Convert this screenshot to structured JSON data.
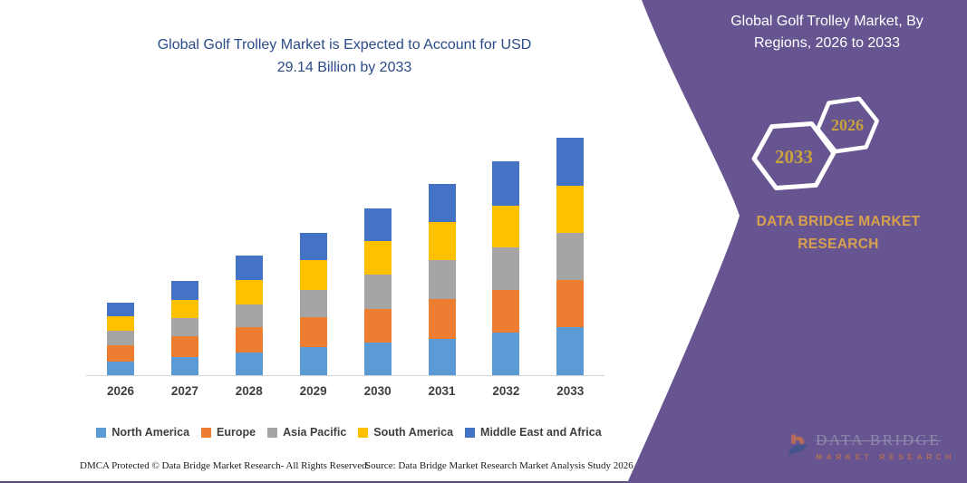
{
  "chart_data": {
    "type": "bar",
    "stacked": true,
    "title": "Global Golf Trolley Market is Expected to Account for USD 29.14 Billion by 2033",
    "title_lines": [
      "Global Golf Trolley Market is Expected to Account for USD",
      "29.14 Billion by 2033"
    ],
    "units": "USD Billion",
    "categories": [
      "2026",
      "2027",
      "2028",
      "2029",
      "2030",
      "2031",
      "2032",
      "2033"
    ],
    "series": [
      {
        "name": "North America",
        "color": "#5B9BD5",
        "values": [
          1.7,
          2.2,
          2.8,
          3.4,
          4.0,
          4.5,
          5.2,
          5.9
        ]
      },
      {
        "name": "Europe",
        "color": "#ED7D31",
        "values": [
          2.0,
          2.6,
          3.1,
          3.7,
          4.1,
          4.8,
          5.2,
          5.8
        ]
      },
      {
        "name": "Asia Pacific",
        "color": "#A5A5A5",
        "values": [
          1.8,
          2.2,
          2.8,
          3.4,
          4.2,
          4.8,
          5.3,
          5.8
        ]
      },
      {
        "name": "South America",
        "color": "#FFC000",
        "values": [
          1.7,
          2.2,
          3.0,
          3.6,
          4.1,
          4.7,
          5.1,
          5.7
        ]
      },
      {
        "name": "Middle East and Africa",
        "color": "#4472C4",
        "values": [
          1.7,
          2.4,
          3.0,
          3.3,
          4.1,
          4.7,
          5.4,
          5.94
        ]
      }
    ],
    "totals": [
      8.9,
      11.6,
      14.7,
      17.4,
      20.5,
      23.5,
      26.2,
      29.14
    ],
    "legend_position": "bottom",
    "gridlines": false,
    "y_axis_visible": false,
    "ylim": [
      0,
      30.5
    ]
  },
  "side_panel": {
    "title": "Global Golf Trolley Market, By Regions, 2026 to 2033",
    "title_lines": [
      "Global Golf Trolley Market, By",
      "Regions, 2026 to 2033"
    ],
    "hexagons": [
      {
        "label": "2033"
      },
      {
        "label": "2026"
      }
    ],
    "brand_lines": [
      "DATA BRIDGE MARKET",
      "RESEARCH"
    ],
    "colors": {
      "panel_purple": "#665590",
      "gold_text": "#d8a14e",
      "hex_number_gold": "#c9a23c",
      "title_white": "#ffffff"
    }
  },
  "footer": {
    "left": "DMCA Protected © Data Bridge Market Research-  All Rights Reserved.",
    "right": "Source: Data Bridge Market Research  Market Analysis Study 2026"
  },
  "watermark_logo": {
    "text_top": "DATA BRIDGE",
    "text_bottom": "MARKET RESEARCH"
  },
  "colors": {
    "chart_title_blue": "#2b4b88",
    "axis_text": "#3f3f3f",
    "bottom_rule": "#5a4a7c"
  }
}
